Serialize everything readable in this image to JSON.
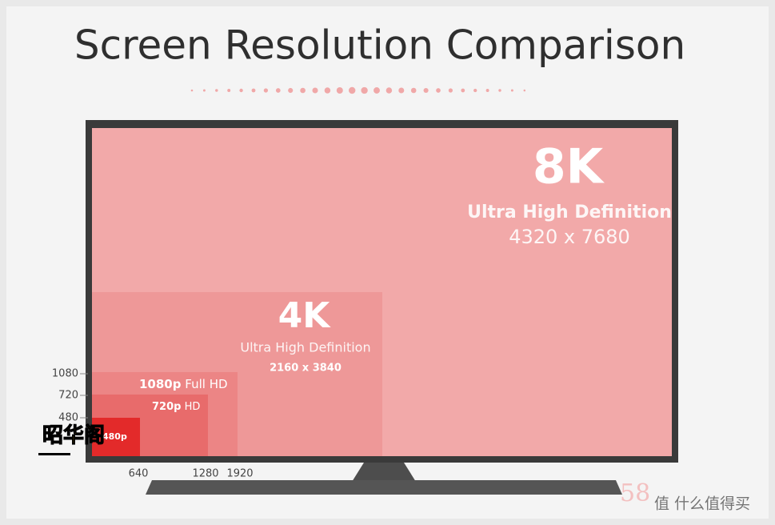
{
  "title": "Screen Resolution Comparison",
  "tiers": [
    {
      "name": "8K",
      "subtitle": "Ultra High Definition",
      "resolution": "4320 x 7680"
    },
    {
      "name": "4K",
      "subtitle": "Ultra High Definition",
      "resolution": "2160 x 3840"
    },
    {
      "name": "1080p",
      "subtitle": "Full HD"
    },
    {
      "name": "720p",
      "subtitle": "HD"
    },
    {
      "name": "480p"
    }
  ],
  "height_labels": [
    1080,
    720,
    480
  ],
  "width_labels": [
    640,
    1280,
    1920
  ],
  "watermarks": [
    "昭华阁",
    "58",
    "值 什么值得买"
  ]
}
